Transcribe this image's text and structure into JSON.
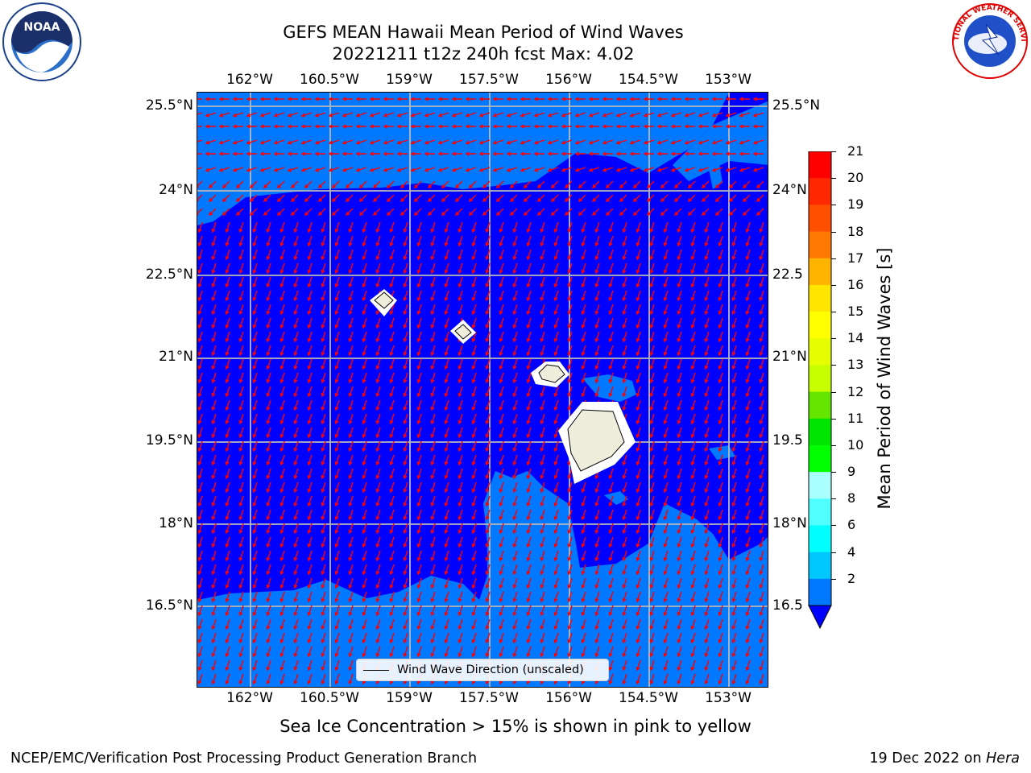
{
  "title": {
    "line1": "GEFS MEAN Hawaii Mean Period of Wind Waves",
    "line2": "20221211 t12z 240h fcst   Max: 4.02"
  },
  "lon_ticks": [
    "162°W",
    "160.5°W",
    "159°W",
    "157.5°W",
    "156°W",
    "154.5°W",
    "153°W"
  ],
  "lat_ticks": [
    "25.5°N",
    "24°N",
    "22.5°N",
    "21°N",
    "19.5°N",
    "18°N",
    "16.5°N"
  ],
  "right_lat_ticks": [
    "25.5°N",
    "24°N",
    "22.5",
    "21°N",
    "19.5",
    "18°N",
    "16.5"
  ],
  "legend": {
    "label": "Wind Wave Direction (unscaled)"
  },
  "colorbar": {
    "title": "Mean Period of Wind Waves [s]",
    "tick_labels": [
      "21",
      "20",
      "19",
      "18",
      "17",
      "16",
      "15",
      "14",
      "13",
      "12",
      "11",
      "10",
      "9",
      "8",
      "6",
      "4",
      "2"
    ],
    "colors": [
      "#ff0000",
      "#ff2800",
      "#ff5000",
      "#ff7800",
      "#ff9600",
      "#ffb400",
      "#ffe600",
      "#ffff00",
      "#e6ff00",
      "#c8ff00",
      "#64e600",
      "#00e600",
      "#00ff00",
      "#50ff80",
      "#aaffff",
      "#50ffff",
      "#00ffff",
      "#00c8ff",
      "#0078ff"
    ],
    "under_color": "#0000ff"
  },
  "colors": {
    "low_period": "#0000ff",
    "mid_period": "#0078ff",
    "arrows": "#ff0000",
    "land": "#efeedc",
    "grid": "#b8b8b8"
  },
  "subcaption": "Sea Ice Concentration > 15% is shown in pink to yellow",
  "footer": {
    "left": "NCEP/EMC/Verification Post Processing Product Generation Branch",
    "right_prefix": "19 Dec 2022 on ",
    "right_host": "Hera"
  },
  "logos": {
    "left": "NOAA",
    "right": "NATIONAL WEATHER SERVICE"
  }
}
